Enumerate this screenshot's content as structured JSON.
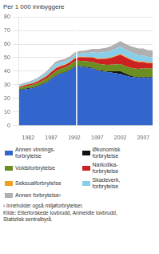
{
  "chart_data": {
    "type": "area",
    "stacked": true,
    "ylabel": "Per 1 000 innbyggere",
    "footnotes": [
      "¹ Inneholder også miljøforbrytelser.",
      "Kilde: Etterforskede lovbrudd, Anmeldte lovbrudd,",
      "Statistisk sentralbyrå."
    ],
    "x": [
      1980,
      1981,
      1982,
      1983,
      1984,
      1985,
      1986,
      1987,
      1988,
      1989,
      1990,
      1991,
      1992,
      1993,
      1994,
      1995,
      1996,
      1997,
      1998,
      1999,
      2000,
      2001,
      2002,
      2003,
      2004,
      2005,
      2006,
      2007,
      2008,
      2009
    ],
    "series": [
      {
        "name": "Annen vinnings-\nforbrytelse",
        "color": "#3366cc",
        "values": [
          25.5,
          26.5,
          27.0,
          27.5,
          28.5,
          30.0,
          31.5,
          34.0,
          36.5,
          38.0,
          39.0,
          40.5,
          43.0,
          43.5,
          43.0,
          42.5,
          42.0,
          40.5,
          40.0,
          39.5,
          39.0,
          38.5,
          38.0,
          37.0,
          36.0,
          35.5,
          35.0,
          35.5,
          35.0,
          35.5
        ]
      },
      {
        "name": "Økonomisk\nforbrytelse",
        "color": "#111111",
        "values": [
          0.5,
          0.5,
          0.5,
          0.5,
          0.5,
          0.5,
          0.5,
          0.5,
          0.5,
          0.5,
          0.5,
          0.5,
          0.5,
          0.5,
          0.5,
          0.5,
          0.5,
          0.5,
          0.5,
          0.5,
          1.0,
          1.5,
          2.0,
          1.5,
          1.0,
          0.5,
          0.5,
          0.5,
          0.5,
          0.5
        ]
      },
      {
        "name": "Voldsforbrytelse",
        "color": "#6b8e23",
        "values": [
          1.5,
          1.6,
          1.8,
          2.0,
          2.2,
          2.4,
          2.6,
          2.8,
          3.0,
          3.2,
          3.4,
          3.5,
          3.6,
          3.8,
          4.0,
          4.2,
          4.4,
          4.5,
          4.6,
          4.7,
          4.8,
          5.0,
          5.2,
          5.5,
          5.8,
          6.0,
          6.2,
          6.3,
          6.4,
          6.5
        ]
      },
      {
        "name": "Narkotika-\nforbrytelse",
        "color": "#cc2222",
        "values": [
          0.8,
          0.9,
          1.0,
          1.1,
          1.2,
          1.5,
          1.8,
          2.0,
          2.2,
          2.0,
          1.8,
          2.0,
          2.2,
          2.5,
          2.8,
          3.0,
          3.2,
          3.5,
          4.0,
          4.5,
          5.0,
          6.0,
          7.0,
          6.5,
          6.0,
          5.5,
          5.0,
          4.5,
          4.0,
          3.5
        ]
      },
      {
        "name": "Seksualforbrytelse",
        "color": "#f0a020",
        "values": [
          0.3,
          0.3,
          0.3,
          0.3,
          0.3,
          0.3,
          0.3,
          0.3,
          0.4,
          0.4,
          0.4,
          0.4,
          0.4,
          0.4,
          0.4,
          0.4,
          0.4,
          0.5,
          0.5,
          0.5,
          0.5,
          0.5,
          0.6,
          0.6,
          0.6,
          0.6,
          0.6,
          0.6,
          0.6,
          0.6
        ]
      },
      {
        "name": "Skadeverk,\nforbrytelse",
        "color": "#87ceeb",
        "values": [
          0.8,
          0.9,
          1.0,
          1.2,
          1.5,
          1.8,
          2.0,
          2.5,
          2.8,
          2.5,
          2.2,
          2.0,
          2.0,
          2.2,
          2.5,
          3.0,
          3.5,
          4.0,
          4.2,
          4.5,
          4.8,
          5.0,
          5.5,
          5.0,
          5.0,
          4.8,
          4.5,
          4.2,
          4.0,
          3.8
        ]
      },
      {
        "name": "Annen forbrytelse¹",
        "color": "#b0b0b0",
        "values": [
          0.5,
          0.6,
          0.7,
          0.8,
          0.9,
          1.0,
          1.2,
          1.5,
          1.8,
          1.8,
          1.8,
          1.8,
          2.0,
          2.0,
          2.0,
          2.2,
          2.5,
          2.8,
          3.0,
          3.2,
          3.5,
          3.8,
          4.0,
          4.2,
          4.5,
          4.8,
          5.0,
          5.2,
          5.0,
          5.0
        ]
      }
    ],
    "xlim": [
      1980,
      2009
    ],
    "xticks": [
      1982,
      1987,
      1992,
      1997,
      2002,
      2007
    ],
    "ylim": [
      0,
      80
    ],
    "yticks": [
      0,
      10,
      20,
      30,
      40,
      50,
      60,
      70,
      80
    ],
    "vline_x": 1992.5,
    "grid": true,
    "legend": "bottom"
  }
}
